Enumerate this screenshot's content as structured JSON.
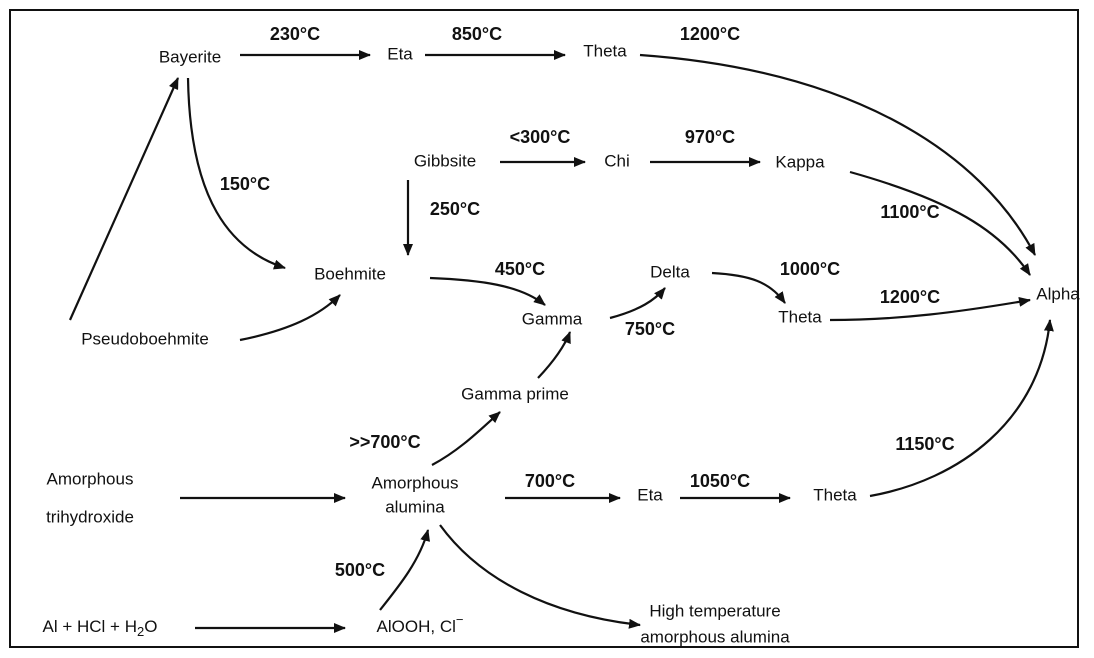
{
  "nodes": [
    {
      "text": "Bayerite"
    },
    {
      "text": "Eta"
    },
    {
      "text": "Theta"
    },
    {
      "text": "Gibbsite"
    },
    {
      "text": "Chi"
    },
    {
      "text": "Kappa"
    },
    {
      "text": "Boehmite"
    },
    {
      "text": "Delta"
    },
    {
      "text": "Gamma"
    },
    {
      "text": "Theta"
    },
    {
      "text": "Alpha"
    },
    {
      "text": "Pseudoboehmite"
    },
    {
      "text": "Gamma prime"
    },
    {
      "lines": [
        "Amorphous",
        "trihydroxide"
      ]
    },
    {
      "lines": [
        "Amorphous",
        "alumina"
      ]
    },
    {
      "text": "Eta"
    },
    {
      "text": "Theta"
    },
    {
      "parts": [
        "Al + HCl + H",
        "2",
        "O"
      ]
    },
    {
      "parts": [
        "AlOOH, Cl",
        "−"
      ]
    },
    {
      "lines": [
        "High temperature",
        "amorphous alumina"
      ]
    }
  ],
  "edge_labels": [
    "230°C",
    "850°C",
    "1200°C",
    "<300°C",
    "970°C",
    "150°C",
    "250°C",
    "1100°C",
    "450°C",
    "1000°C",
    "1200°C",
    "750°C",
    ">>700°C",
    "1150°C",
    "700°C",
    "1050°C",
    "500°C"
  ]
}
